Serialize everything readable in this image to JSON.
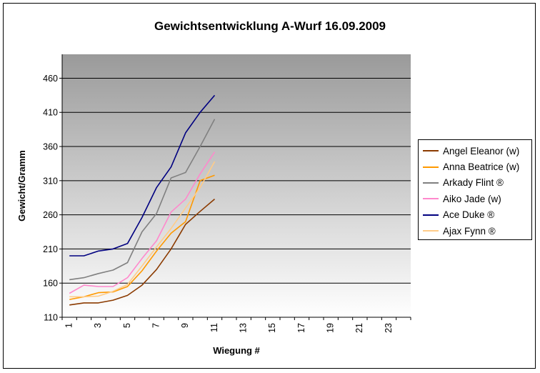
{
  "chart_data": {
    "type": "line",
    "title": "Gewichtsentwicklung A-Wurf 16.09.2009",
    "xlabel": "Wiegung #",
    "ylabel": "Gewicht/Gramm",
    "ylim": [
      110,
      495
    ],
    "yticks": [
      110,
      160,
      210,
      260,
      310,
      360,
      410,
      460
    ],
    "xlim": [
      1,
      24
    ],
    "xtick_labels": [
      "1",
      "3",
      "5",
      "7",
      "9",
      "11",
      "13",
      "15",
      "17",
      "19",
      "21",
      "23"
    ],
    "x": [
      1,
      2,
      3,
      4,
      5,
      6,
      7,
      8,
      9,
      10,
      11
    ],
    "grid": "horizontal",
    "legend_position": "right",
    "series": [
      {
        "name": "Angel Eleanor (w)",
        "color": "#8B3A00",
        "values": [
          128,
          131,
          131,
          135,
          142,
          157,
          180,
          210,
          246,
          265,
          283
        ]
      },
      {
        "name": "Anna Beatrice (w)",
        "color": "#FF9900",
        "values": [
          136,
          140,
          146,
          147,
          155,
          178,
          207,
          233,
          250,
          310,
          318
        ]
      },
      {
        "name": "Arkady Flint ®",
        "color": "#808080",
        "values": [
          165,
          168,
          174,
          179,
          190,
          235,
          262,
          314,
          322,
          360,
          400
        ]
      },
      {
        "name": "Aiko Jade (w)",
        "color": "#FF88CC",
        "values": [
          145,
          157,
          155,
          155,
          168,
          196,
          222,
          264,
          283,
          320,
          352
        ]
      },
      {
        "name": "Ace Duke ®",
        "color": "#000080",
        "values": [
          200,
          200,
          207,
          210,
          218,
          256,
          300,
          330,
          380,
          410,
          435
        ]
      },
      {
        "name": "Ajax Fynn ®",
        "color": "#FFCC88",
        "values": [
          140,
          140,
          141,
          148,
          158,
          185,
          213,
          240,
          270,
          300,
          338
        ]
      }
    ]
  }
}
